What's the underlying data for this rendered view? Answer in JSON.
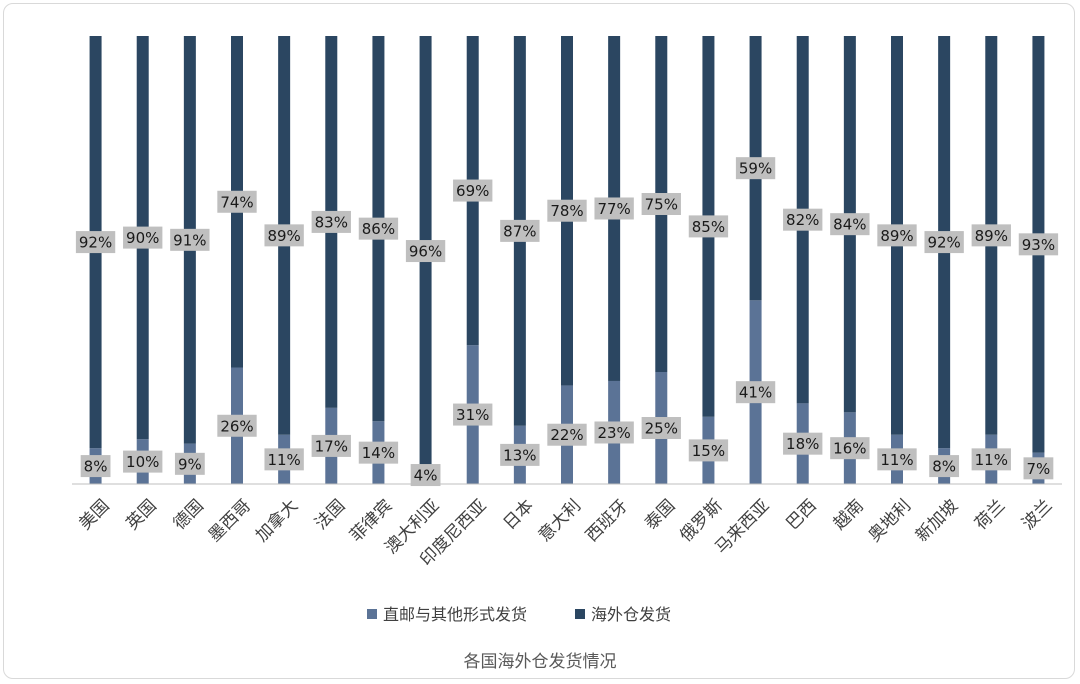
{
  "chart_data": {
    "type": "bar",
    "stacked": true,
    "percent_stacked": true,
    "title": "各国海外仓发货情况",
    "categories": [
      "美国",
      "英国",
      "德国",
      "墨西哥",
      "加拿大",
      "法国",
      "菲律宾",
      "澳大利亚",
      "印度尼西亚",
      "日本",
      "意大利",
      "西班牙",
      "泰国",
      "俄罗斯",
      "马来西亚",
      "巴西",
      "越南",
      "奥地利",
      "新加坡",
      "荷兰",
      "波兰"
    ],
    "series": [
      {
        "name": "直邮与其他形式发货",
        "color": "#5b7396",
        "values": [
          8,
          10,
          9,
          26,
          11,
          17,
          14,
          4,
          31,
          13,
          22,
          23,
          25,
          15,
          41,
          18,
          16,
          11,
          8,
          11,
          7
        ],
        "labels": [
          "8%",
          "10%",
          "9%",
          "26%",
          "11%",
          "17%",
          "14%",
          "4%",
          "31%",
          "13%",
          "22%",
          "23%",
          "25%",
          "15%",
          "41%",
          "18%",
          "16%",
          "11%",
          "8%",
          "11%",
          "7%"
        ]
      },
      {
        "name": "海外仓发货",
        "color": "#2b4661",
        "values": [
          92,
          90,
          91,
          74,
          89,
          83,
          86,
          96,
          69,
          87,
          78,
          77,
          75,
          85,
          59,
          82,
          84,
          89,
          92,
          89,
          93
        ],
        "labels": [
          "92%",
          "90%",
          "91%",
          "74%",
          "89%",
          "83%",
          "86%",
          "96%",
          "69%",
          "87%",
          "78%",
          "77%",
          "75%",
          "85%",
          "59%",
          "82%",
          "84%",
          "89%",
          "92%",
          "89%",
          "93%"
        ]
      }
    ],
    "ylim": [
      0,
      100
    ],
    "grid": false,
    "legend_position": "bottom",
    "label_box_color": "#bfbfbf"
  }
}
